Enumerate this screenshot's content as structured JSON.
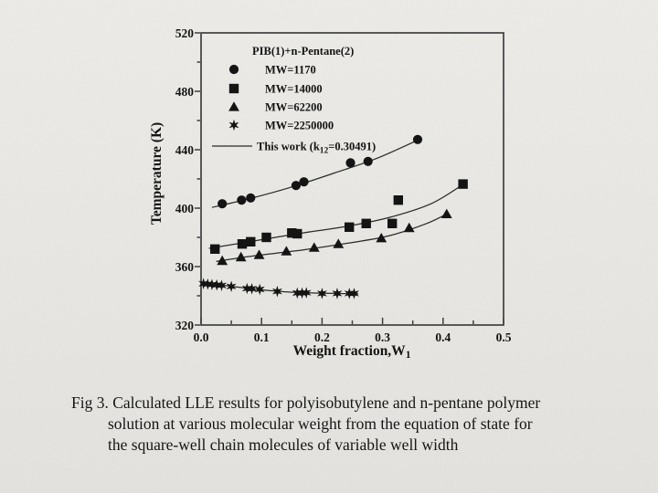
{
  "slide": {
    "background_top": "#f1f0ed",
    "background_bottom": "#e7e6e2",
    "caption_lines": [
      "Fig 3. Calculated LLE results for polyisobutylene and n-pentane polymer",
      "solution at various molecular weight from the equation of state for",
      "the square-well chain molecules of variable well width"
    ]
  },
  "chart_data": {
    "type": "scatter",
    "legend_title": "PIB(1)+n-Pentane(2)",
    "xlabel": "Weight fraction,W",
    "xlabel_subscript": "1",
    "ylabel": "Temperature (K)",
    "xlim": [
      0.0,
      0.5
    ],
    "ylim": [
      320,
      520
    ],
    "x_tick_values": [
      0.0,
      0.1,
      0.2,
      0.3,
      0.4,
      0.5
    ],
    "x_tick_labels": [
      "0.0",
      "0.1",
      "0.2",
      "0.3",
      "0.4",
      "0.5"
    ],
    "x_minor_step": 0.05,
    "y_tick_values": [
      320,
      360,
      400,
      440,
      480,
      520
    ],
    "y_tick_labels": [
      "320",
      "360",
      "400",
      "440",
      "480",
      "520"
    ],
    "y_minor_step": 20,
    "grid": false,
    "legend_position": "inside top-left",
    "ink_color": "#141414",
    "fit_line_label": {
      "pre": "This work (k",
      "sub": "12",
      "post": "=0.30491)"
    },
    "series": [
      {
        "name": "MW=1170",
        "marker": "circle",
        "points": [
          [
            0.035,
            403
          ],
          [
            0.067,
            405.5
          ],
          [
            0.082,
            407
          ],
          [
            0.157,
            415.5
          ],
          [
            0.17,
            418
          ],
          [
            0.247,
            431
          ],
          [
            0.276,
            432
          ],
          [
            0.358,
            447
          ]
        ],
        "fit": [
          [
            0.018,
            400.5
          ],
          [
            0.08,
            406.5
          ],
          [
            0.15,
            414.5
          ],
          [
            0.22,
            424
          ],
          [
            0.29,
            434
          ],
          [
            0.358,
            446.5
          ]
        ]
      },
      {
        "name": "MW=14000",
        "marker": "square",
        "points": [
          [
            0.023,
            372
          ],
          [
            0.068,
            375.5
          ],
          [
            0.082,
            377
          ],
          [
            0.108,
            380
          ],
          [
            0.15,
            383
          ],
          [
            0.159,
            382.5
          ],
          [
            0.245,
            387
          ],
          [
            0.273,
            389.5
          ],
          [
            0.316,
            389.5
          ],
          [
            0.326,
            405.5
          ],
          [
            0.433,
            416.5
          ]
        ],
        "fit": [
          [
            0.013,
            372.5
          ],
          [
            0.08,
            377
          ],
          [
            0.16,
            382.5
          ],
          [
            0.24,
            387.5
          ],
          [
            0.31,
            393.5
          ],
          [
            0.38,
            403
          ],
          [
            0.434,
            416.5
          ]
        ]
      },
      {
        "name": "MW=62200",
        "marker": "triangle",
        "points": [
          [
            0.035,
            364
          ],
          [
            0.066,
            366.5
          ],
          [
            0.096,
            368
          ],
          [
            0.141,
            370.5
          ],
          [
            0.187,
            373
          ],
          [
            0.227,
            375.5
          ],
          [
            0.298,
            379.5
          ],
          [
            0.344,
            386.5
          ],
          [
            0.406,
            396
          ]
        ],
        "fit": [
          [
            0.025,
            363.5
          ],
          [
            0.09,
            367.5
          ],
          [
            0.17,
            371.5
          ],
          [
            0.25,
            376.5
          ],
          [
            0.31,
            381
          ],
          [
            0.37,
            389
          ],
          [
            0.406,
            396
          ]
        ]
      },
      {
        "name": "MW=2250000",
        "marker": "star",
        "points": [
          [
            0.004,
            348.3
          ],
          [
            0.011,
            348
          ],
          [
            0.018,
            347.7
          ],
          [
            0.026,
            347.4
          ],
          [
            0.034,
            347.1
          ],
          [
            0.05,
            346.4
          ],
          [
            0.076,
            345
          ],
          [
            0.084,
            344.8
          ],
          [
            0.097,
            344.4
          ],
          [
            0.126,
            343
          ],
          [
            0.159,
            341.9
          ],
          [
            0.167,
            341.9
          ],
          [
            0.174,
            342.1
          ],
          [
            0.2,
            341.6
          ],
          [
            0.225,
            341.6
          ],
          [
            0.245,
            341.6
          ],
          [
            0.253,
            341.6
          ]
        ],
        "fit": [
          [
            0.0,
            348.6
          ],
          [
            0.04,
            347
          ],
          [
            0.08,
            345
          ],
          [
            0.13,
            343
          ],
          [
            0.18,
            342
          ],
          [
            0.22,
            341.6
          ],
          [
            0.26,
            341.4
          ]
        ]
      }
    ]
  }
}
